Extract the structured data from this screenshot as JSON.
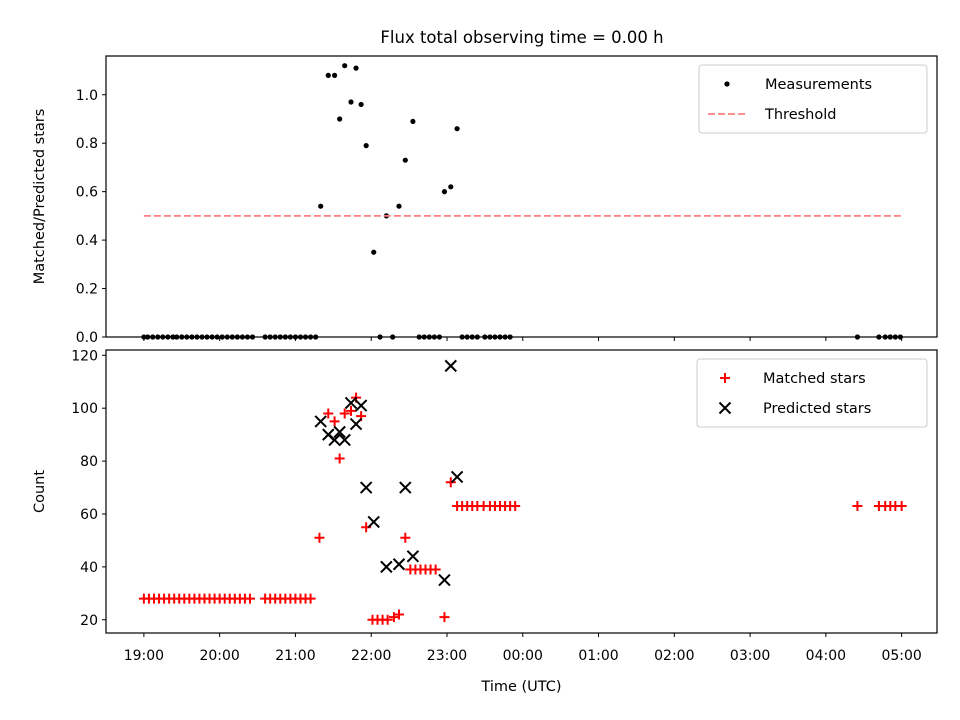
{
  "figure": {
    "title": "Flux total observing time = 0.00 h"
  },
  "chart_data": [
    {
      "type": "scatter",
      "xlabel": "",
      "ylabel": "Matched/Predicted stars",
      "ylim": [
        0,
        1.16
      ],
      "yticks": [
        0.0,
        0.2,
        0.4,
        0.6,
        0.8,
        1.0
      ],
      "ytick_labels": [
        "0.0",
        "0.2",
        "0.4",
        "0.6",
        "0.8",
        "1.0"
      ],
      "legend_position": "upper right",
      "grid": false,
      "series": [
        {
          "name": "Measurements",
          "marker": "dot",
          "color": "#000000",
          "points": [
            [
              "19:00",
              0
            ],
            [
              "19:03",
              0
            ],
            [
              "19:07",
              0
            ],
            [
              "19:11",
              0
            ],
            [
              "19:15",
              0
            ],
            [
              "19:19",
              0
            ],
            [
              "19:23",
              0
            ],
            [
              "19:26",
              0
            ],
            [
              "19:30",
              0
            ],
            [
              "19:34",
              0
            ],
            [
              "19:38",
              0
            ],
            [
              "19:42",
              0
            ],
            [
              "19:46",
              0
            ],
            [
              "19:50",
              0
            ],
            [
              "19:54",
              0
            ],
            [
              "19:58",
              0
            ],
            [
              "20:02",
              0
            ],
            [
              "20:06",
              0
            ],
            [
              "20:10",
              0
            ],
            [
              "20:14",
              0
            ],
            [
              "20:18",
              0
            ],
            [
              "20:22",
              0
            ],
            [
              "20:26",
              0
            ],
            [
              "20:36",
              0
            ],
            [
              "20:40",
              0
            ],
            [
              "20:44",
              0
            ],
            [
              "20:48",
              0
            ],
            [
              "20:52",
              0
            ],
            [
              "20:56",
              0
            ],
            [
              "21:00",
              0
            ],
            [
              "21:04",
              0
            ],
            [
              "21:08",
              0
            ],
            [
              "21:12",
              0
            ],
            [
              "21:16",
              0
            ],
            [
              "21:20",
              0.54
            ],
            [
              "21:26",
              1.08
            ],
            [
              "21:31",
              1.08
            ],
            [
              "21:35",
              0.9
            ],
            [
              "21:39",
              1.12
            ],
            [
              "21:44",
              0.97
            ],
            [
              "21:48",
              1.11
            ],
            [
              "21:52",
              0.96
            ],
            [
              "21:56",
              0.79
            ],
            [
              "22:02",
              0.35
            ],
            [
              "22:07",
              0
            ],
            [
              "22:12",
              0.5
            ],
            [
              "22:17",
              0
            ],
            [
              "22:22",
              0.54
            ],
            [
              "22:27",
              0.73
            ],
            [
              "22:33",
              0.89
            ],
            [
              "22:38",
              0
            ],
            [
              "22:42",
              0
            ],
            [
              "22:46",
              0
            ],
            [
              "22:50",
              0
            ],
            [
              "22:54",
              0
            ],
            [
              "22:58",
              0.6
            ],
            [
              "23:03",
              0.62
            ],
            [
              "23:08",
              0.86
            ],
            [
              "23:12",
              0
            ],
            [
              "23:16",
              0
            ],
            [
              "23:20",
              0
            ],
            [
              "23:24",
              0
            ],
            [
              "23:30",
              0
            ],
            [
              "23:34",
              0
            ],
            [
              "23:38",
              0
            ],
            [
              "23:42",
              0
            ],
            [
              "23:46",
              0
            ],
            [
              "23:50",
              0
            ],
            [
              "04:25",
              0
            ],
            [
              "04:42",
              0
            ],
            [
              "04:47",
              0
            ],
            [
              "04:51",
              0
            ],
            [
              "04:55",
              0
            ],
            [
              "04:59",
              0
            ]
          ]
        },
        {
          "name": "Threshold",
          "marker": "dashed-line",
          "color": "#ff7f7f",
          "points": [
            [
              "19:00",
              0.5
            ],
            [
              "05:00",
              0.5
            ]
          ]
        }
      ]
    },
    {
      "type": "scatter",
      "xlabel": "Time (UTC)",
      "ylabel": "Count",
      "ylim": [
        15,
        122
      ],
      "yticks": [
        20,
        40,
        60,
        80,
        100,
        120
      ],
      "ytick_labels": [
        "20",
        "40",
        "60",
        "80",
        "100",
        "120"
      ],
      "xlim": [
        "18:30",
        "05:28"
      ],
      "xticks": [
        "19:00",
        "20:00",
        "21:00",
        "22:00",
        "23:00",
        "00:00",
        "01:00",
        "02:00",
        "03:00",
        "04:00",
        "05:00"
      ],
      "xtick_labels": [
        "19:00",
        "20:00",
        "21:00",
        "22:00",
        "23:00",
        "00:00",
        "01:00",
        "02:00",
        "03:00",
        "04:00",
        "05:00"
      ],
      "legend_position": "upper right",
      "grid": false,
      "series": [
        {
          "name": "Matched stars",
          "marker": "plus",
          "color": "#ff0000",
          "points": [
            [
              "19:00",
              28
            ],
            [
              "19:04",
              28
            ],
            [
              "19:08",
              28
            ],
            [
              "19:12",
              28
            ],
            [
              "19:16",
              28
            ],
            [
              "19:20",
              28
            ],
            [
              "19:24",
              28
            ],
            [
              "19:28",
              28
            ],
            [
              "19:32",
              28
            ],
            [
              "19:36",
              28
            ],
            [
              "19:40",
              28
            ],
            [
              "19:44",
              28
            ],
            [
              "19:48",
              28
            ],
            [
              "19:52",
              28
            ],
            [
              "19:56",
              28
            ],
            [
              "20:00",
              28
            ],
            [
              "20:04",
              28
            ],
            [
              "20:08",
              28
            ],
            [
              "20:12",
              28
            ],
            [
              "20:16",
              28
            ],
            [
              "20:20",
              28
            ],
            [
              "20:24",
              28
            ],
            [
              "20:36",
              28
            ],
            [
              "20:40",
              28
            ],
            [
              "20:44",
              28
            ],
            [
              "20:48",
              28
            ],
            [
              "20:52",
              28
            ],
            [
              "20:56",
              28
            ],
            [
              "21:00",
              28
            ],
            [
              "21:04",
              28
            ],
            [
              "21:08",
              28
            ],
            [
              "21:12",
              28
            ],
            [
              "21:19",
              51
            ],
            [
              "21:26",
              98
            ],
            [
              "21:31",
              95
            ],
            [
              "21:35",
              81
            ],
            [
              "21:39",
              98
            ],
            [
              "21:44",
              99
            ],
            [
              "21:48",
              104
            ],
            [
              "21:52",
              97
            ],
            [
              "21:56",
              55
            ],
            [
              "22:01",
              20
            ],
            [
              "22:05",
              20
            ],
            [
              "22:09",
              20
            ],
            [
              "22:13",
              20
            ],
            [
              "22:18",
              21
            ],
            [
              "22:22",
              22
            ],
            [
              "22:27",
              51
            ],
            [
              "22:31",
              39
            ],
            [
              "22:35",
              39
            ],
            [
              "22:39",
              39
            ],
            [
              "22:43",
              39
            ],
            [
              "22:47",
              39
            ],
            [
              "22:51",
              39
            ],
            [
              "22:58",
              21
            ],
            [
              "23:03",
              72
            ],
            [
              "23:08",
              63
            ],
            [
              "23:12",
              63
            ],
            [
              "23:16",
              63
            ],
            [
              "23:20",
              63
            ],
            [
              "23:24",
              63
            ],
            [
              "23:29",
              63
            ],
            [
              "23:34",
              63
            ],
            [
              "23:38",
              63
            ],
            [
              "23:42",
              63
            ],
            [
              "23:46",
              63
            ],
            [
              "23:50",
              63
            ],
            [
              "23:54",
              63
            ],
            [
              "04:25",
              63
            ],
            [
              "04:42",
              63
            ],
            [
              "04:47",
              63
            ],
            [
              "04:51",
              63
            ],
            [
              "04:55",
              63
            ],
            [
              "05:00",
              63
            ]
          ]
        },
        {
          "name": "Predicted stars",
          "marker": "x",
          "color": "#000000",
          "points": [
            [
              "21:20",
              95
            ],
            [
              "21:26",
              90
            ],
            [
              "21:31",
              88
            ],
            [
              "21:35",
              91
            ],
            [
              "21:39",
              88
            ],
            [
              "21:44",
              102
            ],
            [
              "21:48",
              94
            ],
            [
              "21:52",
              101
            ],
            [
              "21:56",
              70
            ],
            [
              "22:02",
              57
            ],
            [
              "22:12",
              40
            ],
            [
              "22:22",
              41
            ],
            [
              "22:27",
              70
            ],
            [
              "22:33",
              44
            ],
            [
              "22:58",
              35
            ],
            [
              "23:03",
              116
            ],
            [
              "23:08",
              74
            ]
          ]
        }
      ]
    }
  ]
}
